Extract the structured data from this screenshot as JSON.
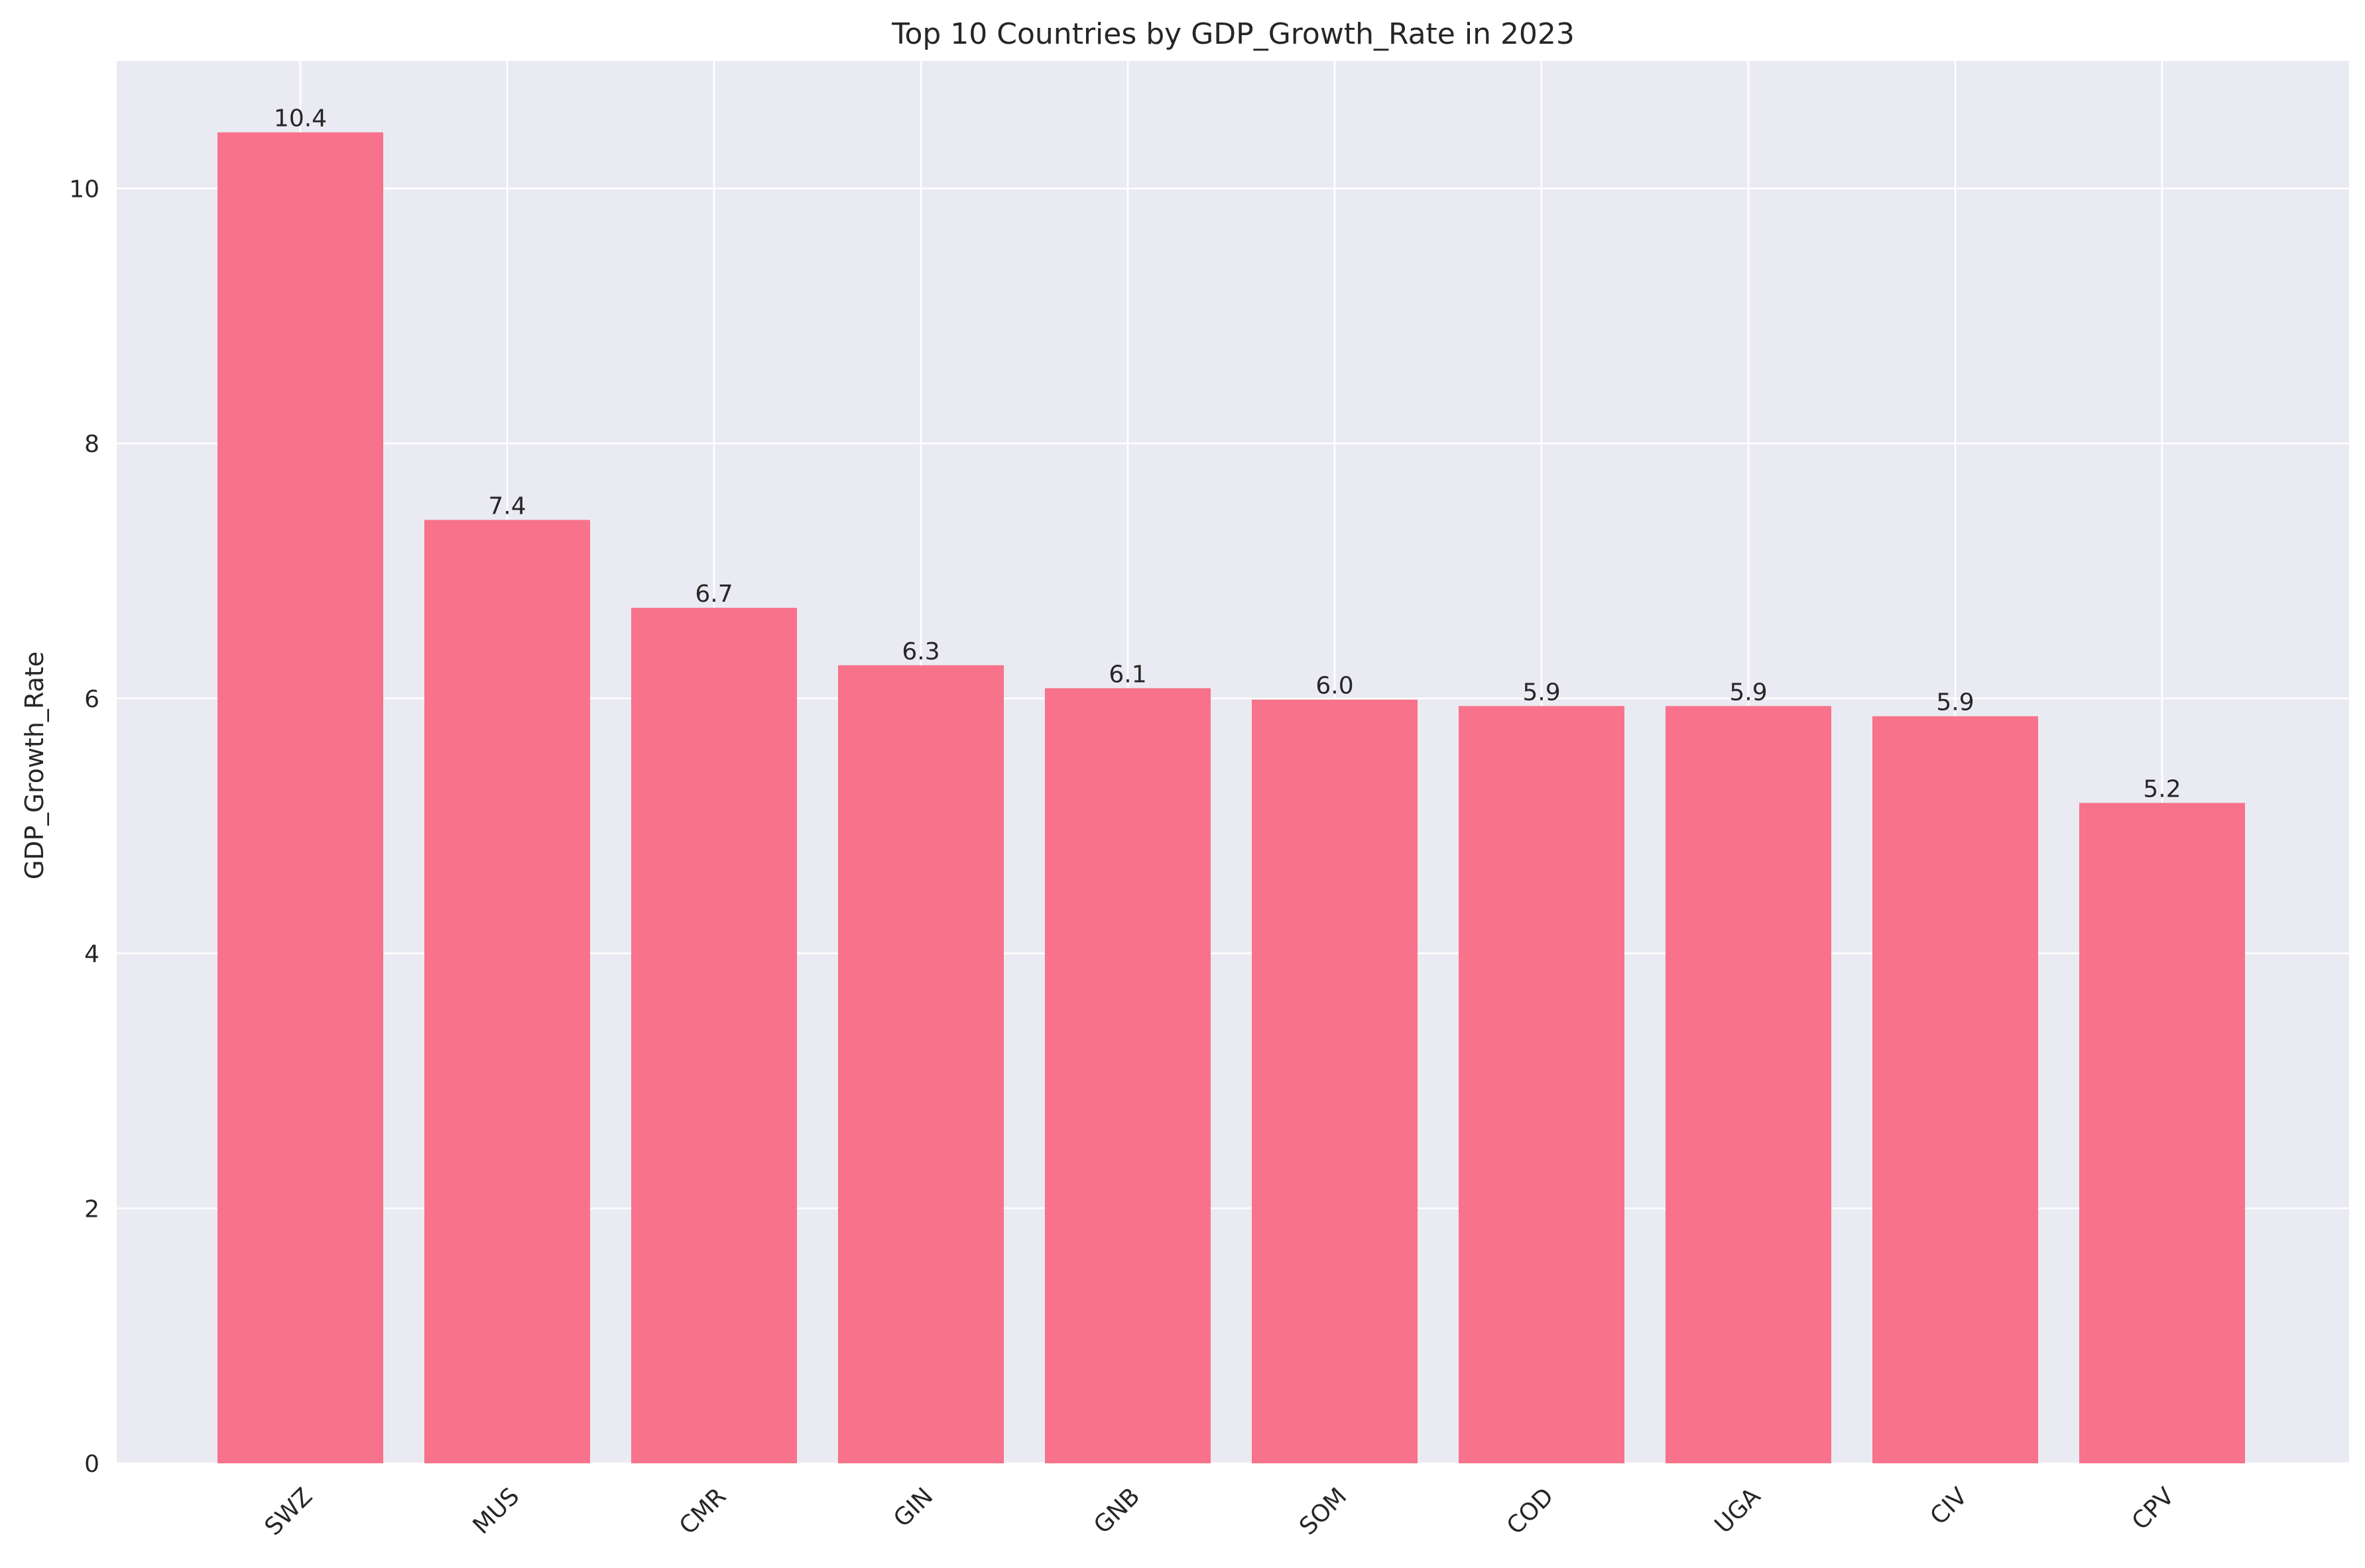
{
  "chart_data": {
    "type": "bar",
    "title": "Top 10 Countries by GDP_Growth_Rate in 2023",
    "xlabel": "",
    "ylabel": "GDP_Growth_Rate",
    "categories": [
      "SWZ",
      "MUS",
      "CMR",
      "GIN",
      "GNB",
      "SOM",
      "COD",
      "UGA",
      "CIV",
      "CPV"
    ],
    "values": [
      10.44,
      7.4,
      6.71,
      6.26,
      6.08,
      5.99,
      5.94,
      5.94,
      5.86,
      5.18
    ],
    "value_labels": [
      "10.4",
      "7.4",
      "6.7",
      "6.3",
      "6.1",
      "6.0",
      "5.9",
      "5.9",
      "5.9",
      "5.2"
    ],
    "ylim": [
      0,
      11
    ],
    "yticks": [
      0,
      2,
      4,
      6,
      8,
      10
    ],
    "grid": true,
    "bar_color": "#f7728a",
    "background_color": "#eaeaf2",
    "grid_color": "#ffffff"
  }
}
